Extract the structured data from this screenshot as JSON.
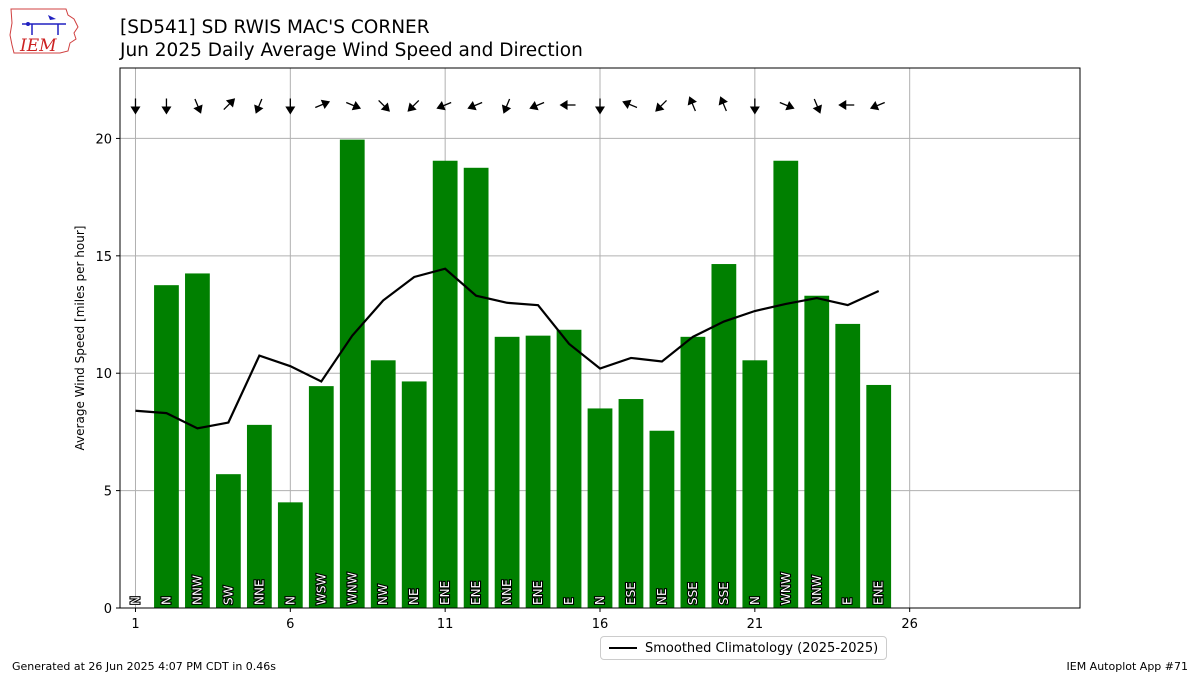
{
  "header": {
    "title_line1": "[SD541] SD RWIS MAC'S CORNER",
    "title_line2": "Jun 2025 Daily Average Wind Speed and Direction"
  },
  "logo": {
    "text": "IEM",
    "color": "#cc2222"
  },
  "footer": {
    "left": "Generated at 26 Jun 2025 4:07 PM CDT in 0.46s",
    "right": "IEM Autoplot App #71"
  },
  "legend": {
    "label": "Smoothed Climatology (2025-2025)"
  },
  "chart_data": {
    "type": "bar",
    "xlabel": "",
    "ylabel": "Average Wind Speed [miles per hour]",
    "xlim": [
      0.5,
      31.5
    ],
    "ylim": [
      0,
      23
    ],
    "grid": true,
    "legend_position": "bottom-center",
    "bar_color": "#008000",
    "line_color": "#000000",
    "x_ticks": [
      1,
      6,
      11,
      16,
      21,
      26
    ],
    "y_ticks": [
      0,
      5,
      10,
      15,
      20
    ],
    "days": [
      1,
      2,
      3,
      4,
      5,
      6,
      7,
      8,
      9,
      10,
      11,
      12,
      13,
      14,
      15,
      16,
      17,
      18,
      19,
      20,
      21,
      22,
      23,
      24,
      25
    ],
    "speed": [
      0,
      13.75,
      14.25,
      5.7,
      7.8,
      4.5,
      9.45,
      19.95,
      10.55,
      9.65,
      19.05,
      18.75,
      11.55,
      11.6,
      11.85,
      8.5,
      8.9,
      7.55,
      11.55,
      14.65,
      10.55,
      19.05,
      13.3,
      12.1,
      9.5
    ],
    "direction_labels": [
      "N",
      "N",
      "NNW",
      "SW",
      "NNE",
      "N",
      "WSW",
      "WNW",
      "NW",
      "NE",
      "ENE",
      "ENE",
      "NNE",
      "ENE",
      "E",
      "N",
      "ESE",
      "NE",
      "SSE",
      "SSE",
      "N",
      "WNW",
      "NNW",
      "E",
      "ENE"
    ],
    "direction_degrees": [
      0,
      0,
      337.5,
      225,
      22.5,
      0,
      247.5,
      292.5,
      315,
      45,
      67.5,
      67.5,
      22.5,
      67.5,
      90,
      0,
      112.5,
      45,
      157.5,
      157.5,
      0,
      292.5,
      337.5,
      90,
      67.5
    ],
    "climatology_series": {
      "name": "Smoothed Climatology (2025-2025)",
      "values": [
        8.4,
        8.3,
        7.65,
        7.9,
        10.75,
        10.3,
        9.65,
        11.6,
        13.1,
        14.1,
        14.45,
        13.3,
        13.0,
        12.9,
        11.25,
        10.2,
        10.65,
        10.5,
        11.55,
        12.2,
        12.65,
        12.95,
        13.2,
        12.9,
        13.5
      ]
    }
  }
}
